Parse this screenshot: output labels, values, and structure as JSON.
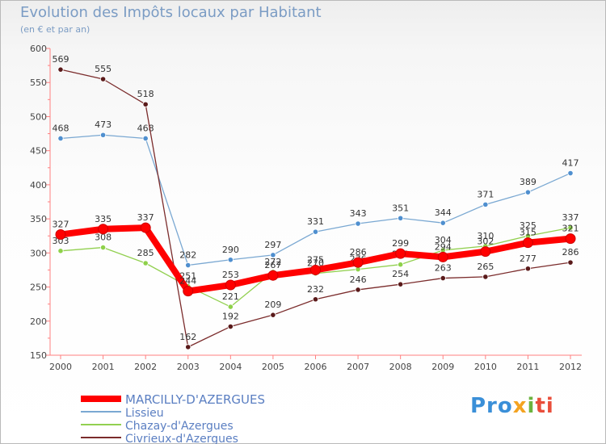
{
  "chart_data": {
    "type": "line",
    "title": "Evolution des Impôts locaux par Habitant",
    "subtitle": "(en € et par an)",
    "xlabel": "",
    "ylabel": "",
    "categories": [
      "2000",
      "2001",
      "2002",
      "2003",
      "2004",
      "2005",
      "2006",
      "2007",
      "2008",
      "2009",
      "2010",
      "2011",
      "2012"
    ],
    "ylim": [
      150,
      600
    ],
    "yticks": [
      150,
      200,
      250,
      300,
      350,
      400,
      450,
      500,
      550,
      600
    ],
    "series": [
      {
        "name": "MARCILLY-D'AZERGUES",
        "color": "#ff0000",
        "values": [
          327,
          335,
          337,
          244,
          253,
          267,
          275,
          286,
          299,
          294,
          302,
          315,
          321
        ]
      },
      {
        "name": "Lissieu",
        "color": "#7aa8d2",
        "values": [
          468,
          473,
          468,
          282,
          290,
          297,
          331,
          343,
          351,
          344,
          371,
          389,
          417
        ]
      },
      {
        "name": "Chazay-d'Azergues",
        "color": "#92d050",
        "values": [
          303,
          308,
          285,
          251,
          221,
          272,
          270,
          276,
          283,
          304,
          310,
          325,
          337
        ]
      },
      {
        "name": "Civrieux-d'Azergues",
        "color": "#7b2c2c",
        "values": [
          569,
          555,
          518,
          162,
          192,
          209,
          232,
          246,
          254,
          263,
          265,
          277,
          286
        ]
      }
    ],
    "legend_position": "bottom-left",
    "grid": false
  },
  "logo": {
    "text": "Proxiti",
    "parts": [
      "Pro",
      "x",
      "i",
      "ti"
    ]
  }
}
